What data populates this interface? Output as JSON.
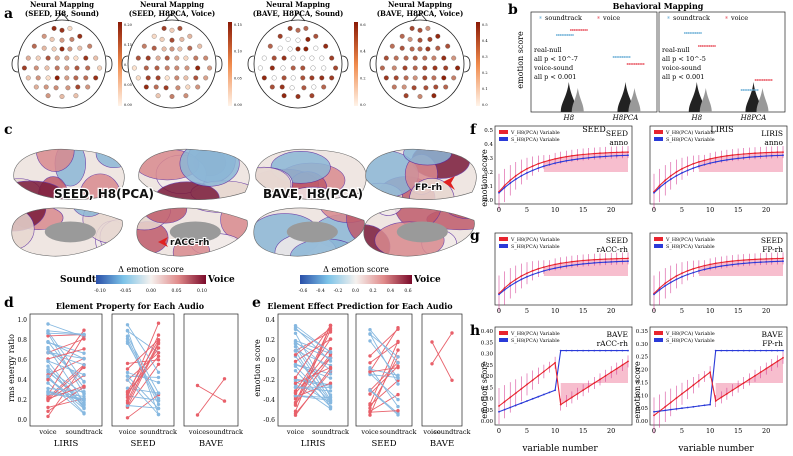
{
  "panel_letters": [
    "a",
    "b",
    "c",
    "d",
    "e",
    "f",
    "g",
    "h"
  ],
  "panel_a": {
    "titles": [
      [
        "Neural Mapping",
        "(SEED, H8, Sound)"
      ],
      [
        "Neural Mapping",
        "(SEED, H8PCA, Voice)"
      ],
      [
        "Neural Mapping",
        "(BAVE, H8PCA, Sound)"
      ],
      [
        "Neural Mapping",
        "(BAVE, H8PCA, Voice)"
      ]
    ],
    "colorbar_ticks": [
      [
        "0.20",
        "0.15",
        "0.10",
        "0.05",
        "0.00"
      ],
      [
        "0.15",
        "0.10",
        "0.05",
        "0.00"
      ],
      [
        "0.6",
        "0.4",
        "0.2",
        "0.0"
      ],
      [
        "0.5",
        "0.4",
        "0.3",
        "0.2",
        "0.1",
        "0.0"
      ]
    ]
  },
  "panel_b": {
    "title": "Behavioral Mapping",
    "legend": [
      "soundtrack",
      "voice"
    ],
    "ylabel": "emotion score",
    "subplots": [
      {
        "dataset": "SEED",
        "xticks": [
          "H8",
          "H8PCA"
        ],
        "annotation": [
          "real-null",
          "all p < 10^-7",
          "voice-sound",
          "all p < 0.001"
        ]
      },
      {
        "dataset": "LIRIS",
        "xticks": [
          "H8",
          "H8PCA"
        ],
        "annotation": [
          "real-null",
          "all p < 10^-5",
          "voice-sound",
          "all p < 0.001"
        ]
      }
    ],
    "colors": {
      "soundtrack": "#6aaed6",
      "voice": "#e8535f"
    }
  },
  "panel_c": {
    "brain_labels": [
      "SEED, H8(PCA)",
      "BAVE, H8(PCA)"
    ],
    "callouts": [
      "FP-rh",
      "rACC-rh"
    ],
    "colorbar_title": "Δ emotion score",
    "colorbar_ends": [
      "Soundtrack",
      "Voice"
    ],
    "colorbar1_ticks": [
      "-0.10",
      "-0.05",
      "0.00",
      "0.05",
      "0.10"
    ],
    "colorbar2_ticks": [
      "-0.6",
      "-0.4",
      "-0.2",
      "0.0",
      "0.2",
      "0.4",
      "0.6"
    ]
  },
  "panel_d": {
    "title": "Element Property for Each Audio",
    "ylabel": "rms energy ratio",
    "yticks": [
      "0.0",
      "0.2",
      "0.4",
      "0.6",
      "0.8",
      "1.0"
    ],
    "groups": [
      "LIRIS",
      "SEED",
      "BAVE"
    ],
    "xticks": [
      "voice",
      "soundtrack"
    ]
  },
  "panel_e": {
    "title": "Element Effect Prediction for Each Audio",
    "ylabel": "emotion score",
    "yticks": [
      "-0.6",
      "-0.4",
      "-0.2",
      "0.0",
      "0.2",
      "0.4"
    ],
    "groups": [
      "LIRIS",
      "SEED",
      "BAVE"
    ],
    "xticks": [
      "voice",
      "soundtrack"
    ]
  },
  "panel_fgh": {
    "ylabel": "emotion score",
    "xlabel": "variable number",
    "legend": [
      "V_H8(PCA) Variable",
      "S_H8(PCA) Variable"
    ],
    "subplots": [
      {
        "row": "f",
        "label": [
          "SEED",
          "anno"
        ],
        "xticks": [
          "0",
          "5",
          "10",
          "15",
          "20"
        ],
        "yticks": [
          "0.0",
          "0.1",
          "0.2",
          "0.3",
          "0.4",
          "0.5"
        ]
      },
      {
        "row": "f",
        "label": [
          "LIRIS",
          "anno"
        ],
        "xticks": [
          "0",
          "5",
          "10",
          "15",
          "20"
        ],
        "yticks": []
      },
      {
        "row": "g",
        "label": [
          "SEED",
          "rACC-rh"
        ],
        "xticks": [
          "0",
          "5",
          "10",
          "15",
          "20"
        ],
        "yticks": []
      },
      {
        "row": "g",
        "label": [
          "SEED",
          "FP-rh"
        ],
        "xticks": [
          "0",
          "5",
          "10",
          "15",
          "20"
        ],
        "yticks": []
      },
      {
        "row": "h",
        "label": [
          "BAVE",
          "rACC-rh"
        ],
        "xticks": [
          "0",
          "5",
          "10",
          "15",
          "20"
        ],
        "yticks": [
          "0.00",
          "0.05",
          "0.10",
          "0.15",
          "0.20",
          "0.25",
          "0.30",
          "0.35",
          "0.40"
        ]
      },
      {
        "row": "h",
        "label": [
          "BAVE",
          "FP-rh"
        ],
        "xticks": [
          "0",
          "5",
          "10",
          "15",
          "20"
        ],
        "yticks": [
          "0.00",
          "0.05",
          "0.10",
          "0.15",
          "0.20",
          "0.25",
          "0.30",
          "0.35"
        ]
      }
    ]
  }
}
